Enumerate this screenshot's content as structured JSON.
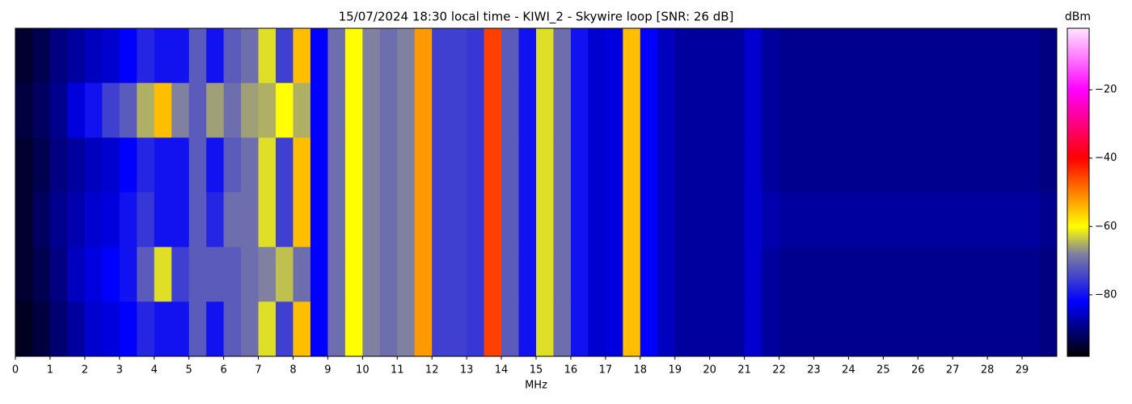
{
  "chart_data": {
    "type": "heatmap",
    "title": "15/07/2024 18:30 local time - KIWI_2 - Skywire loop [SNR: 26 dB]",
    "xlabel": "MHz",
    "colorbar_label": "dBm",
    "xlim": [
      0,
      30
    ],
    "xticks": [
      0,
      1,
      2,
      3,
      4,
      5,
      6,
      7,
      8,
      9,
      10,
      11,
      12,
      13,
      14,
      15,
      16,
      17,
      18,
      19,
      20,
      21,
      22,
      23,
      24,
      25,
      26,
      27,
      28,
      29
    ],
    "zlim": [
      -98,
      -2
    ],
    "zticks": [
      {
        "value": -20,
        "label": "−20"
      },
      {
        "value": -40,
        "label": "−40"
      },
      {
        "value": -60,
        "label": "−60"
      },
      {
        "value": -80,
        "label": "−80"
      }
    ],
    "colorscale": [
      [
        -98,
        "#000000"
      ],
      [
        -82,
        "#0000ff"
      ],
      [
        -68,
        "#8080a0"
      ],
      [
        -60,
        "#ffff00"
      ],
      [
        -40,
        "#ff0000"
      ],
      [
        -20,
        "#ff00ff"
      ],
      [
        -2,
        "#ffe6ff"
      ]
    ],
    "z": [
      [
        -95,
        -93,
        -90,
        -88,
        -86,
        -85,
        -82,
        -78,
        -80,
        -80,
        -72,
        -80,
        -72,
        -70,
        -62,
        -75,
        -55,
        -82,
        -70,
        -60,
        -68,
        -70,
        -68,
        -52,
        -75,
        -75,
        -76,
        -45,
        -72,
        -80,
        -62,
        -70,
        -80,
        -85,
        -84,
        -55,
        -82,
        -86,
        -88,
        -88,
        -88,
        -88,
        -85,
        -88,
        -89,
        -89,
        -89,
        -89,
        -89,
        -89,
        -89,
        -89,
        -89,
        -89,
        -89,
        -89,
        -89,
        -89,
        -89,
        -90
      ],
      [
        -94,
        -92,
        -89,
        -84,
        -80,
        -75,
        -72,
        -65,
        -55,
        -68,
        -72,
        -66,
        -70,
        -66,
        -65,
        -60,
        -65,
        -82,
        -70,
        -60,
        -68,
        -70,
        -68,
        -52,
        -75,
        -75,
        -76,
        -45,
        -72,
        -80,
        -62,
        -70,
        -80,
        -85,
        -84,
        -55,
        -82,
        -86,
        -88,
        -88,
        -88,
        -88,
        -85,
        -88,
        -89,
        -89,
        -89,
        -89,
        -89,
        -89,
        -89,
        -89,
        -89,
        -89,
        -89,
        -89,
        -89,
        -89,
        -89,
        -90
      ],
      [
        -95,
        -93,
        -90,
        -88,
        -86,
        -85,
        -82,
        -78,
        -80,
        -80,
        -72,
        -80,
        -72,
        -70,
        -62,
        -75,
        -55,
        -82,
        -70,
        -60,
        -68,
        -70,
        -68,
        -52,
        -75,
        -75,
        -76,
        -45,
        -72,
        -80,
        -62,
        -70,
        -80,
        -85,
        -84,
        -55,
        -82,
        -86,
        -88,
        -88,
        -88,
        -88,
        -85,
        -88,
        -89,
        -89,
        -89,
        -89,
        -89,
        -89,
        -89,
        -89,
        -89,
        -89,
        -89,
        -89,
        -89,
        -89,
        -89,
        -90
      ],
      [
        -95,
        -92,
        -89,
        -87,
        -85,
        -84,
        -80,
        -76,
        -80,
        -80,
        -72,
        -78,
        -70,
        -70,
        -62,
        -75,
        -55,
        -82,
        -70,
        -60,
        -68,
        -70,
        -68,
        -52,
        -75,
        -75,
        -76,
        -45,
        -72,
        -80,
        -62,
        -70,
        -80,
        -85,
        -84,
        -55,
        -82,
        -86,
        -88,
        -88,
        -88,
        -88,
        -85,
        -87,
        -88,
        -88,
        -88,
        -88,
        -88,
        -88,
        -88,
        -88,
        -88,
        -88,
        -88,
        -88,
        -88,
        -88,
        -88,
        -89
      ],
      [
        -95,
        -93,
        -90,
        -86,
        -84,
        -82,
        -80,
        -72,
        -62,
        -75,
        -72,
        -72,
        -72,
        -70,
        -68,
        -64,
        -70,
        -82,
        -70,
        -60,
        -68,
        -70,
        -68,
        -52,
        -75,
        -75,
        -76,
        -45,
        -72,
        -80,
        -62,
        -70,
        -80,
        -85,
        -84,
        -55,
        -82,
        -86,
        -88,
        -88,
        -88,
        -88,
        -85,
        -88,
        -89,
        -89,
        -89,
        -89,
        -89,
        -89,
        -89,
        -89,
        -89,
        -89,
        -89,
        -89,
        -89,
        -89,
        -89,
        -90
      ],
      [
        -96,
        -94,
        -91,
        -88,
        -85,
        -84,
        -82,
        -78,
        -80,
        -80,
        -72,
        -80,
        -72,
        -70,
        -62,
        -75,
        -55,
        -82,
        -70,
        -60,
        -68,
        -70,
        -68,
        -52,
        -75,
        -75,
        -76,
        -45,
        -72,
        -80,
        -62,
        -70,
        -80,
        -85,
        -84,
        -55,
        -82,
        -86,
        -88,
        -88,
        -88,
        -88,
        -85,
        -88,
        -89,
        -89,
        -89,
        -89,
        -89,
        -89,
        -89,
        -89,
        -89,
        -89,
        -89,
        -89,
        -89,
        -89,
        -89,
        -90
      ]
    ]
  }
}
